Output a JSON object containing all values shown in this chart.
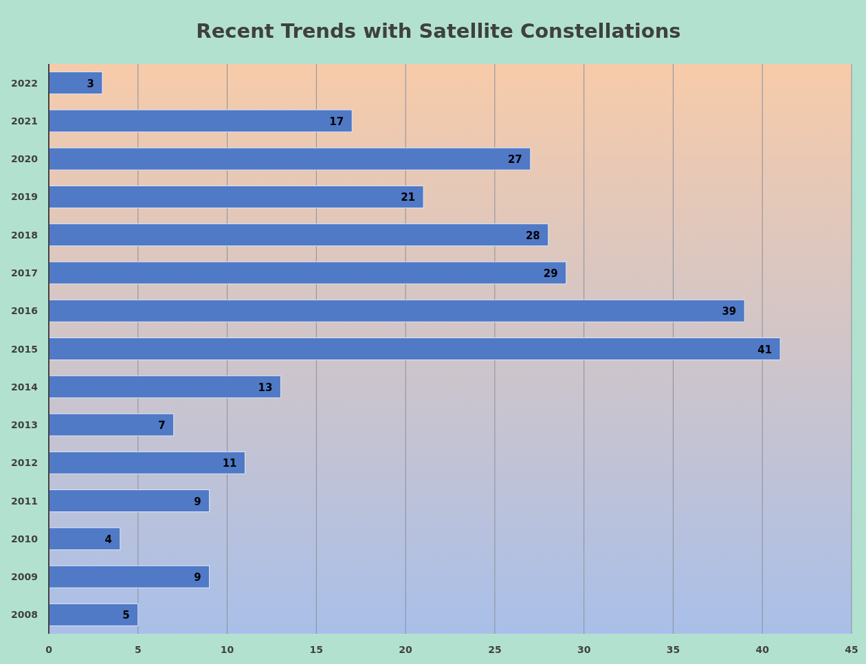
{
  "chart_data": {
    "type": "bar",
    "title": "Recent Trends with Satellite Constellations",
    "orientation": "horizontal",
    "categories": [
      "2022",
      "2021",
      "2020",
      "2019",
      "2018",
      "2017",
      "2016",
      "2015",
      "2014",
      "2013",
      "2012",
      "2011",
      "2010",
      "2009",
      "2008"
    ],
    "values": [
      3,
      17,
      27,
      21,
      28,
      29,
      39,
      41,
      13,
      7,
      11,
      9,
      4,
      9,
      5
    ],
    "color": "#5079c6",
    "xlim": [
      0,
      45
    ],
    "xticks": [
      0,
      5,
      10,
      15,
      20,
      25,
      30,
      35,
      40,
      45
    ],
    "grid": "x",
    "data_labels": true
  }
}
